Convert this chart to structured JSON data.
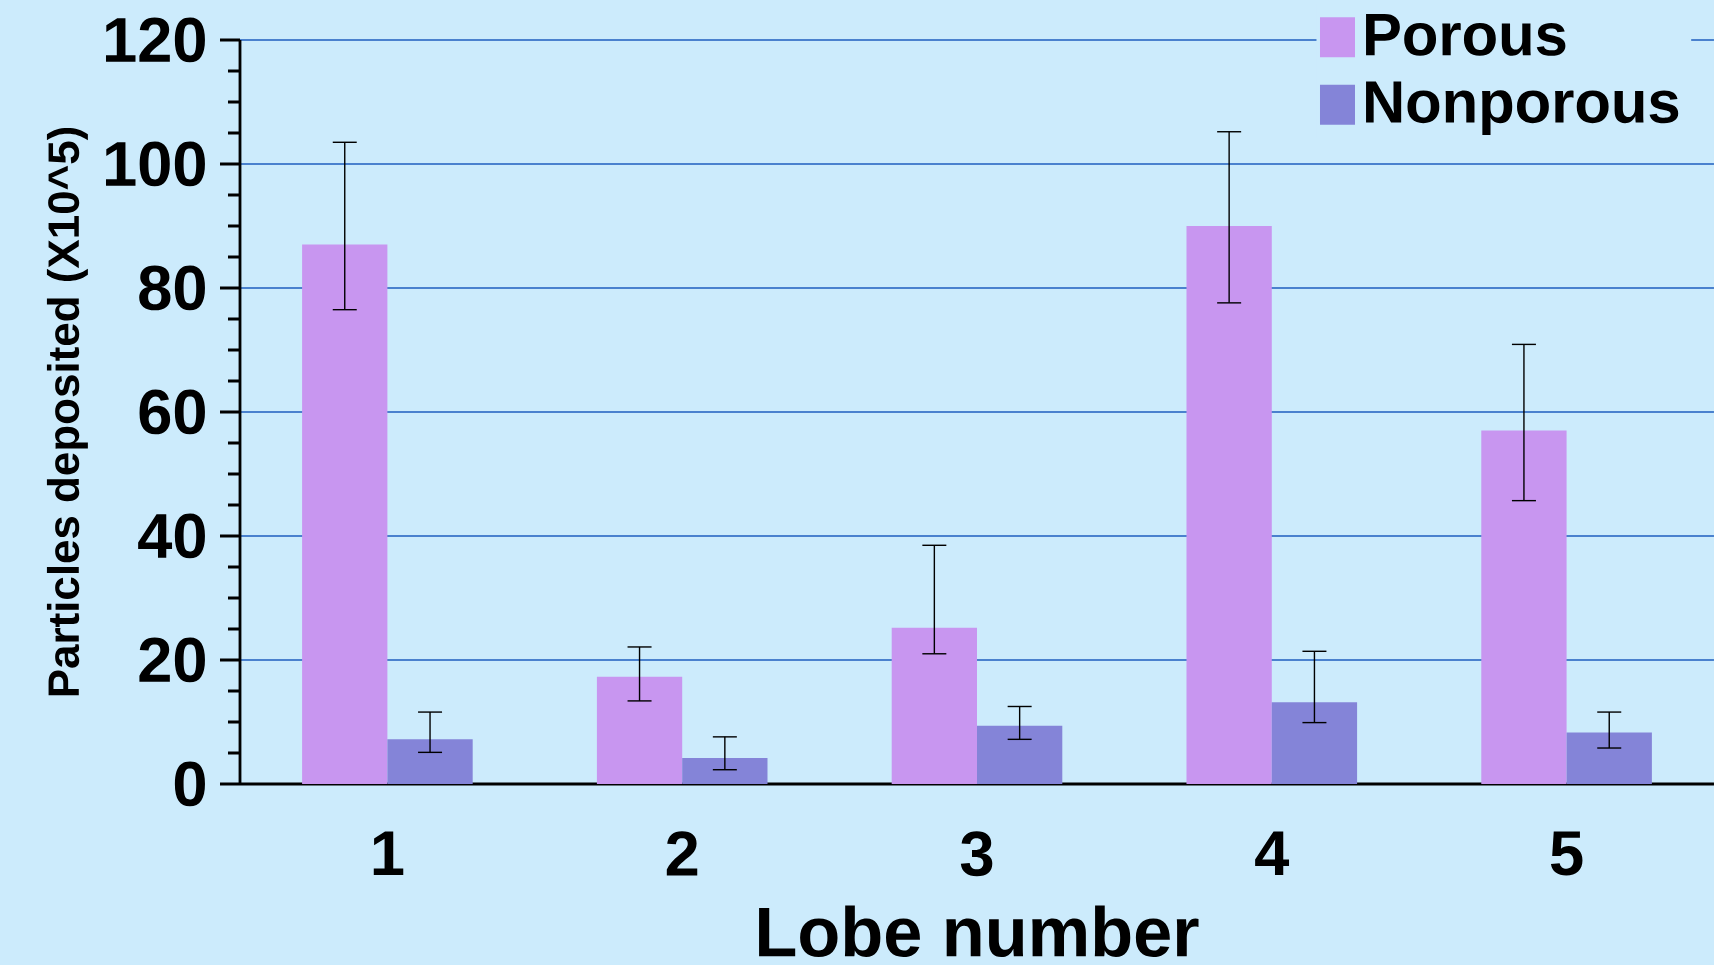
{
  "chart_data": {
    "type": "bar",
    "xlabel": "Lobe number",
    "ylabel": "Particles deposited (X10^5)",
    "categories": [
      "1",
      "2",
      "3",
      "4",
      "5"
    ],
    "series": [
      {
        "name": "Porous",
        "color": "#c896f0",
        "values": [
          87,
          17.3,
          25.2,
          90,
          57
        ],
        "errors": [
          [
            76.5,
            103.5
          ],
          [
            13.4,
            22.1
          ],
          [
            21,
            38.5
          ],
          [
            77.6,
            105.2
          ],
          [
            45.7,
            70.9
          ]
        ]
      },
      {
        "name": "Nonporous",
        "color": "#8484d8",
        "values": [
          7.2,
          4.2,
          9.4,
          13.2,
          8.3
        ],
        "errors": [
          [
            5.1,
            11.6
          ],
          [
            2.3,
            7.6
          ],
          [
            7.2,
            12.5
          ],
          [
            9.9,
            21.4
          ],
          [
            5.8,
            11.6
          ]
        ]
      }
    ],
    "ylim": [
      0,
      120
    ],
    "yticks": [
      0,
      20,
      40,
      60,
      80,
      100,
      120
    ],
    "grid": "y",
    "legend": "top right"
  }
}
